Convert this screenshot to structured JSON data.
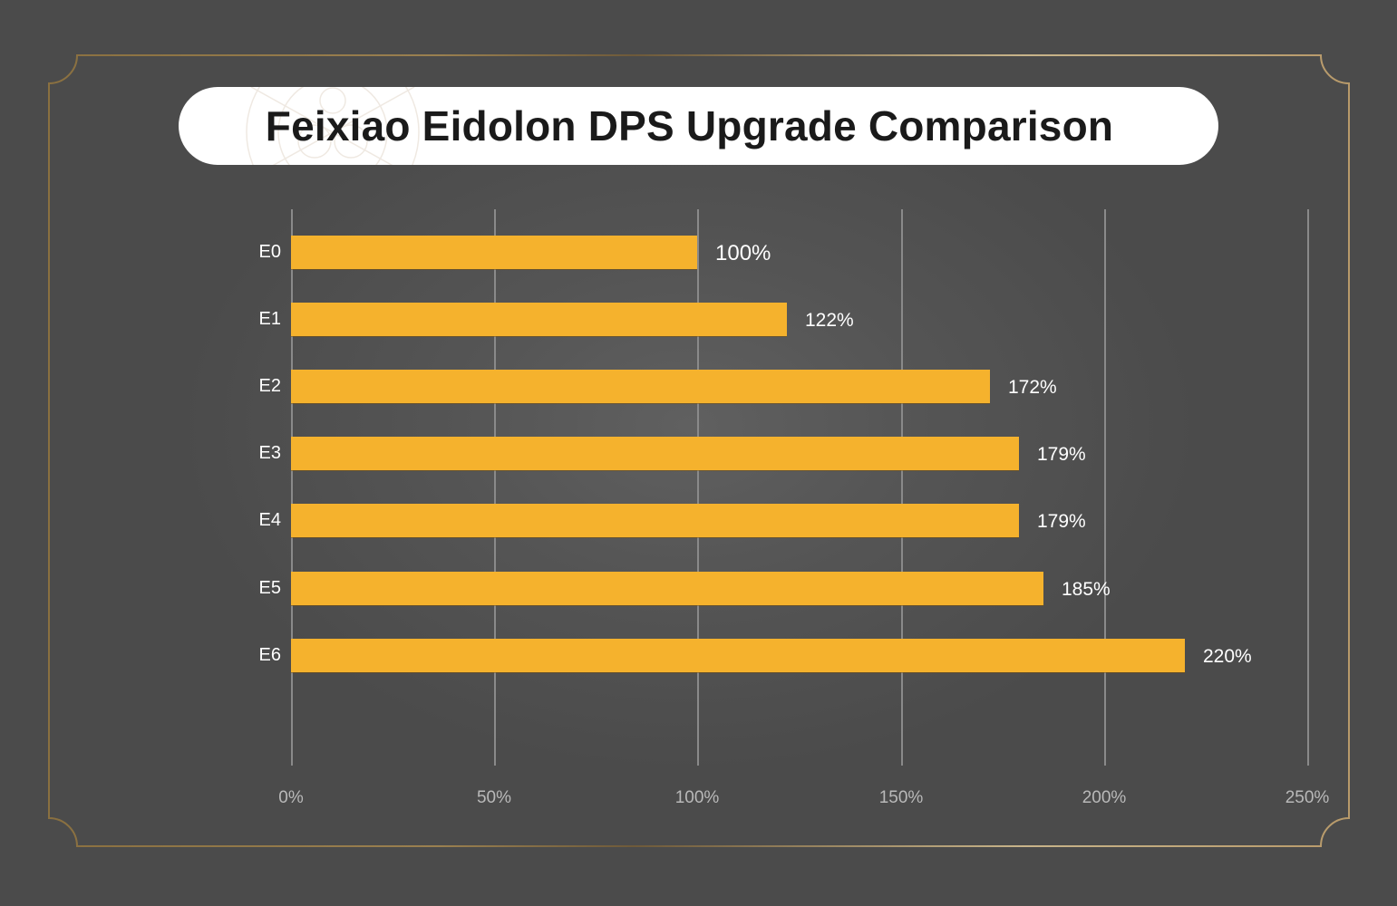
{
  "header": {
    "title": "Feixiao Eidolon DPS Upgrade Comparison"
  },
  "colors": {
    "background": "#4b4b4b",
    "bar": "#f5b22d",
    "frame_border": "#8a7040",
    "title_pill": "#ffffff",
    "title_text": "#1a1a1a",
    "gridline": "#8a8a8a",
    "tick_label": "#b9b9b9",
    "value_label": "#ffffff"
  },
  "chart_data": {
    "type": "bar",
    "orientation": "horizontal",
    "title": "Feixiao Eidolon DPS Upgrade Comparison",
    "categories": [
      "E0",
      "E1",
      "E2",
      "E3",
      "E4",
      "E5",
      "E6"
    ],
    "values": [
      100,
      122,
      172,
      179,
      179,
      185,
      220
    ],
    "value_labels": [
      "100%",
      "122%",
      "172%",
      "179%",
      "179%",
      "185%",
      "220%"
    ],
    "xlabel": "",
    "ylabel": "",
    "xlim": [
      0,
      250
    ],
    "x_ticks": [
      "0%",
      "50%",
      "100%",
      "150%",
      "200%",
      "250%"
    ],
    "grid": true,
    "legend": "none"
  }
}
